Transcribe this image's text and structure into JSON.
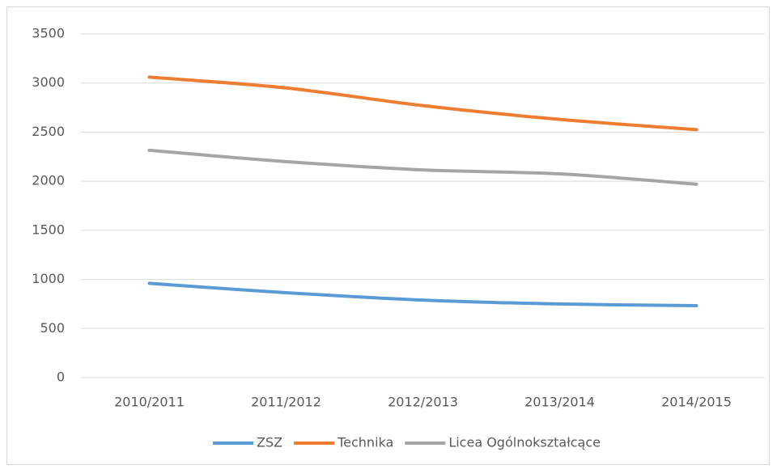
{
  "chart_data": {
    "type": "line",
    "categories": [
      "2010/2011",
      "2011/2012",
      "2012/2013",
      "2013/2014",
      "2014/2015"
    ],
    "series": [
      {
        "name": "ZSZ",
        "color": "#5b9bd5",
        "values": [
          960,
          865,
          790,
          750,
          733
        ]
      },
      {
        "name": "Technika",
        "color": "#ed7d31",
        "values": [
          3060,
          2950,
          2770,
          2630,
          2525
        ]
      },
      {
        "name": "Licea Ogólnokształcące",
        "color": "#a5a5a5",
        "values": [
          2315,
          2200,
          2115,
          2075,
          1970
        ]
      }
    ],
    "ylim": [
      0,
      3500
    ],
    "yticks": [
      0,
      500,
      1000,
      1500,
      2000,
      2500,
      3000,
      3500
    ],
    "grid": true,
    "legend": "bottom"
  }
}
